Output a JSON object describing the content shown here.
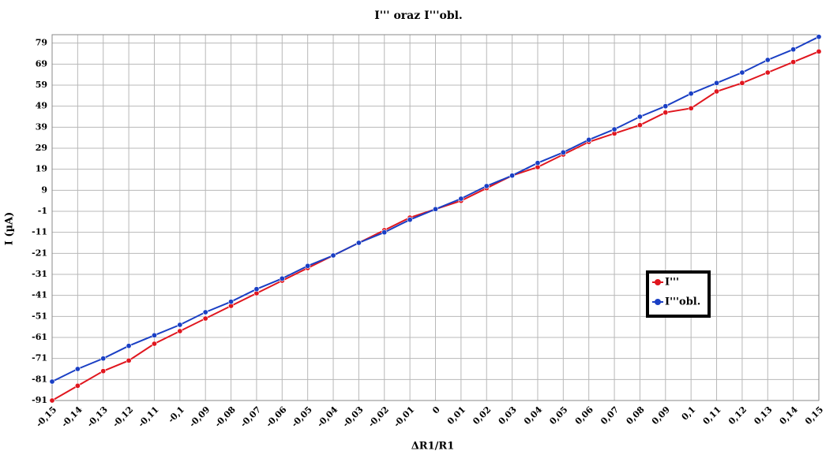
{
  "chart_data": {
    "type": "line",
    "title": "I'''  oraz  I'''obl.",
    "x_label": "ΔR1/R1",
    "y_label": "I (µA)",
    "x": [
      -0.15,
      -0.14,
      -0.13,
      -0.12,
      -0.11,
      -0.1,
      -0.09,
      -0.08,
      -0.07,
      -0.06,
      -0.05,
      -0.04,
      -0.03,
      -0.02,
      -0.01,
      0,
      0.01,
      0.02,
      0.03,
      0.04,
      0.05,
      0.06,
      0.07,
      0.08,
      0.09,
      0.1,
      0.11,
      0.12,
      0.13,
      0.14,
      0.15
    ],
    "series": [
      {
        "name": "I'''",
        "color": "#e0161e",
        "values": [
          -91,
          -84,
          -77,
          -72,
          -64,
          -58,
          -52,
          -46,
          -40,
          -34,
          -28,
          -22,
          -16,
          -10,
          -4,
          0,
          4,
          10,
          16,
          20,
          26,
          32,
          36,
          40,
          46,
          48,
          56,
          60,
          65,
          70,
          75
        ]
      },
      {
        "name": "I'''obl.",
        "color": "#1a3fc4",
        "values": [
          -82,
          -76,
          -71,
          -65,
          -60,
          -55,
          -49,
          -44,
          -38,
          -33,
          -27,
          -22,
          -16,
          -11,
          -5,
          0,
          5,
          11,
          16,
          22,
          27,
          33,
          38,
          44,
          49,
          55,
          60,
          65,
          71,
          76,
          82
        ]
      }
    ],
    "xlim": [
      -0.15,
      0.15
    ],
    "xticks": [
      {
        "value": -0.15,
        "label": "-0,15"
      },
      {
        "value": -0.14,
        "label": "-0,14"
      },
      {
        "value": -0.13,
        "label": "-0,13"
      },
      {
        "value": -0.12,
        "label": "-0,12"
      },
      {
        "value": -0.11,
        "label": "-0,11"
      },
      {
        "value": -0.1,
        "label": "-0,1"
      },
      {
        "value": -0.09,
        "label": "-0,09"
      },
      {
        "value": -0.08,
        "label": "-0,08"
      },
      {
        "value": -0.07,
        "label": "-0,07"
      },
      {
        "value": -0.06,
        "label": "-0,06"
      },
      {
        "value": -0.05,
        "label": "-0,05"
      },
      {
        "value": -0.04,
        "label": "-0,04"
      },
      {
        "value": -0.03,
        "label": "-0,03"
      },
      {
        "value": -0.02,
        "label": "-0,02"
      },
      {
        "value": -0.01,
        "label": "-0,01"
      },
      0,
      {
        "value": 0.01,
        "label": "0,01"
      },
      {
        "value": 0.02,
        "label": "0,02"
      },
      {
        "value": 0.03,
        "label": "0,03"
      },
      {
        "value": 0.04,
        "label": "0,04"
      },
      {
        "value": 0.05,
        "label": "0,05"
      },
      {
        "value": 0.06,
        "label": "0,06"
      },
      {
        "value": 0.07,
        "label": "0,07"
      },
      {
        "value": 0.08,
        "label": "0,08"
      },
      {
        "value": 0.09,
        "label": "0,09"
      },
      {
        "value": 0.1,
        "label": "0,1"
      },
      {
        "value": 0.11,
        "label": "0,11"
      },
      {
        "value": 0.12,
        "label": "0,12"
      },
      {
        "value": 0.13,
        "label": "0,13"
      },
      {
        "value": 0.14,
        "label": "0,14"
      },
      {
        "value": 0.15,
        "label": "0,15"
      }
    ],
    "ylim": [
      -91,
      83
    ],
    "yticks": [
      -91,
      -81,
      -71,
      -61,
      -51,
      -41,
      -31,
      -21,
      -11,
      -1,
      9,
      19,
      29,
      39,
      49,
      59,
      69,
      79
    ],
    "grid": true,
    "legend": "right"
  }
}
